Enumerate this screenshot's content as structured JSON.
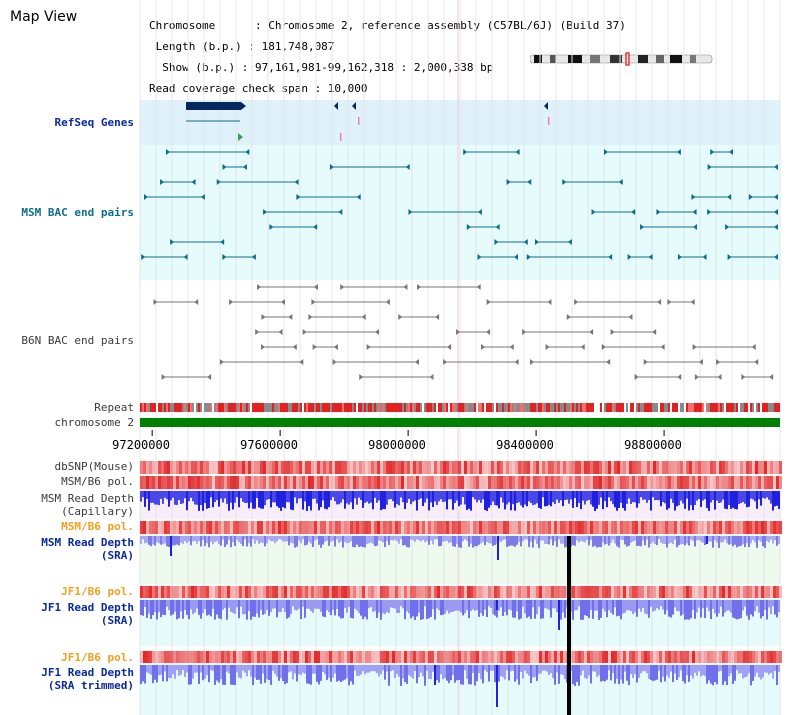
{
  "page": {
    "title": "Map View"
  },
  "info": {
    "line1": "Chromosome      : Chromosome 2, reference assembly (C57BL/6J) (Build 37)",
    "line2": " Length (b.p.) : 181,748,087",
    "line3": "  Show (b.p.) : 97,161,981-99,162,318 : 2,000,338 bp",
    "line4": "Read coverage check span : 10,000"
  },
  "tracks": {
    "refseq": "RefSeq Genes",
    "msm_bac": "MSM BAC end pairs",
    "b6n_bac": "B6N BAC end pairs",
    "repeat": "Repeat",
    "chromosome": "chromosome 2",
    "dbsnp": "dbSNP(Mouse)",
    "msm_b6_pol_1": "MSM/B6 pol.",
    "msm_depth_cap_1": "MSM Read Depth",
    "msm_depth_cap_2": "(Capillary)",
    "msm_b6_pol_2": "MSM/B6 pol.",
    "msm_depth_sra_1": "MSM Read Depth",
    "msm_depth_sra_2": "(SRA)",
    "jf1_b6_pol_1": "JF1/B6 pol.",
    "jf1_depth_sra_1": "JF1 Read Depth",
    "jf1_depth_sra_2": "(SRA)",
    "jf1_b6_pol_2": "JF1/B6 pol.",
    "jf1_depth_trim_1": "JF1 Read Depth",
    "jf1_depth_trim_2": "(SRA trimmed)"
  },
  "axis": {
    "ticks": [
      "97200000",
      "97600000",
      "98000000",
      "98400000",
      "98800000"
    ],
    "tick_values": [
      97200000,
      97600000,
      98000000,
      98400000,
      98800000
    ],
    "start": 97161981,
    "end": 99162318
  },
  "colors": {
    "refseq_bg": "#dff1fb",
    "msm_bac_bg": "#e6fcfc",
    "gene": "#06285f",
    "msm_feature": "#0d6e8c",
    "b6n_feature": "#777777",
    "repeat_red": "#e12222",
    "chromosome": "#008000",
    "depth_bar": "#2020e0",
    "depth_light": "#8c8cf0",
    "highlight_line": "#000000"
  }
}
